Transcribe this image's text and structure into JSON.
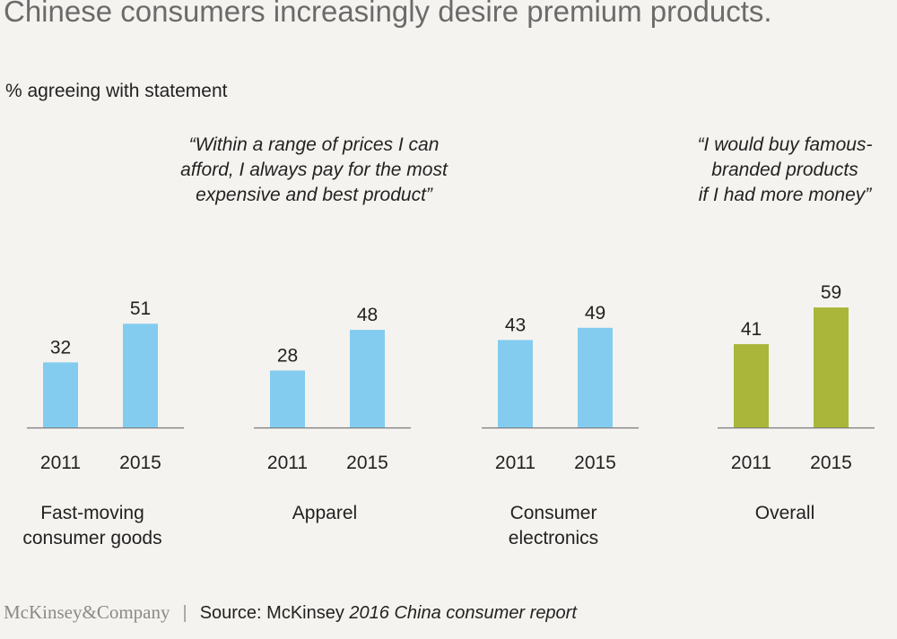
{
  "title": "Chinese consumers increasingly desire premium products.",
  "subtitle": "% agreeing with statement",
  "quotes": [
    "“Within a range of prices I can\nafford, I always pay for the most\nexpensive and best product”",
    "“I would buy famous-\nbranded products\n if I had more money”"
  ],
  "colors": {
    "blue": "#83ccf0",
    "green": "#a9b63a",
    "axis": "#7a7a7a",
    "background": "#f5f3ef"
  },
  "chart_data": {
    "type": "bar",
    "ylim": [
      0,
      70
    ],
    "groups": [
      {
        "label": "Fast-moving\nconsumer goods",
        "color": "blue",
        "bars": [
          {
            "x": "2011",
            "value": 32
          },
          {
            "x": "2015",
            "value": 51
          }
        ]
      },
      {
        "label": "Apparel",
        "color": "blue",
        "bars": [
          {
            "x": "2011",
            "value": 28
          },
          {
            "x": "2015",
            "value": 48
          }
        ]
      },
      {
        "label": "Consumer\nelectronics",
        "color": "blue",
        "bars": [
          {
            "x": "2011",
            "value": 43
          },
          {
            "x": "2015",
            "value": 49
          }
        ]
      },
      {
        "label": "Overall",
        "color": "green",
        "bars": [
          {
            "x": "2011",
            "value": 41
          },
          {
            "x": "2015",
            "value": 59
          }
        ]
      }
    ]
  },
  "footer": {
    "brand": "McKinsey&Company",
    "divider": "|",
    "source_prefix": "Source: McKinsey ",
    "source_title": "2016 China consumer report"
  }
}
